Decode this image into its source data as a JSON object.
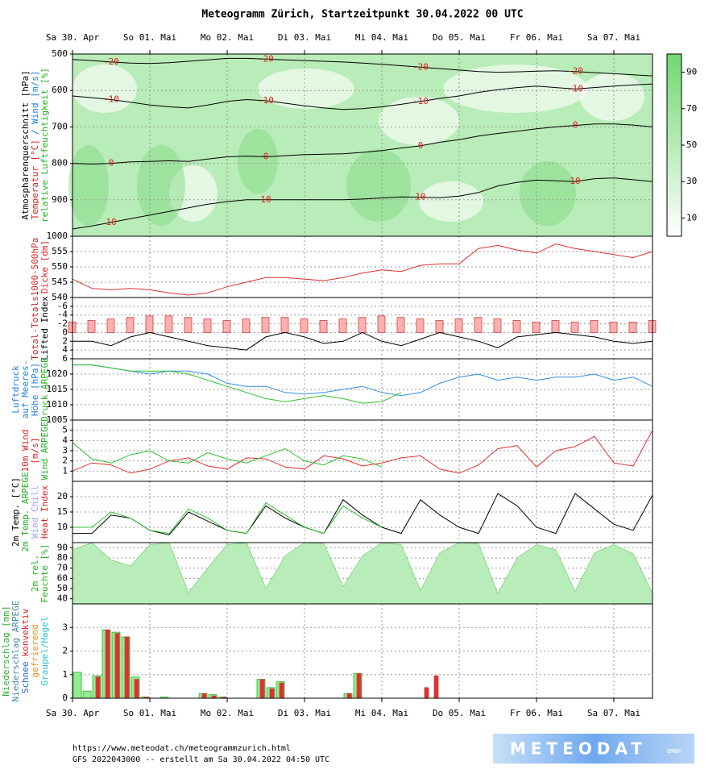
{
  "title": "Meteogramm Zürich, Startzeitpunkt 30.04.2022 00 UTC",
  "time_axis": {
    "xlim": [
      0,
      180
    ],
    "xticks": [
      {
        "value": 0,
        "label": "Sa 30. Apr"
      },
      {
        "value": 24,
        "label": "So 01. Mai"
      },
      {
        "value": 48,
        "label": "Mo 02. Mai"
      },
      {
        "value": 72,
        "label": "Di 03. Mai"
      },
      {
        "value": 96,
        "label": "Mi 04. Mai"
      },
      {
        "value": 120,
        "label": "Do 05. Mai"
      },
      {
        "value": 144,
        "label": "Fr 06. Mai"
      },
      {
        "value": 168,
        "label": "Sa 07. Mai"
      }
    ],
    "x": [
      0,
      6,
      12,
      18,
      24,
      30,
      36,
      42,
      48,
      54,
      60,
      66,
      72,
      78,
      84,
      90,
      96,
      102,
      108,
      114,
      120,
      126,
      132,
      138,
      144,
      150,
      156,
      162,
      168,
      174,
      180
    ]
  },
  "chart_data": [
    {
      "type": "contour",
      "ylim": [
        1000,
        500
      ],
      "yticks": [
        500,
        600,
        700,
        800,
        900,
        1000
      ],
      "grid": true,
      "ylabel": [
        [
          {
            "text": "Atmosphärenquerschnitt [hPa]",
            "color": "#000000"
          }
        ],
        [
          {
            "text": "Temperatur [°C]",
            "color": "#e02020"
          },
          {
            "text": "/ Wind [m/s]",
            "color": "#2080e0"
          }
        ],
        [
          {
            "text": "relative Luftfeuchtigkeit [%]",
            "color": "#20b020"
          }
        ]
      ],
      "colorbar": {
        "lim": [
          0,
          100
        ],
        "ticks": [
          10,
          30,
          50,
          70,
          90
        ]
      },
      "series": [
        {
          "name": "-20",
          "color": "#000000",
          "values": [
            515,
            518,
            522,
            525,
            526,
            524,
            520,
            516,
            512,
            512,
            514,
            516,
            518,
            520,
            522,
            525,
            528,
            532,
            536,
            540,
            544,
            548,
            550,
            549,
            547,
            546,
            548,
            551,
            554,
            557,
            560
          ]
        },
        {
          "name": "-10",
          "color": "#000000",
          "values": [
            615,
            620,
            625,
            632,
            640,
            645,
            648,
            640,
            630,
            625,
            628,
            635,
            642,
            648,
            652,
            650,
            645,
            638,
            630,
            622,
            615,
            605,
            598,
            592,
            588,
            592,
            596,
            592,
            588,
            585,
            582
          ]
        },
        {
          "name": "0",
          "color": "#000000",
          "values": [
            800,
            802,
            800,
            796,
            795,
            793,
            795,
            788,
            782,
            780,
            782,
            779,
            776,
            775,
            774,
            770,
            765,
            758,
            752,
            742,
            735,
            725,
            718,
            712,
            705,
            700,
            696,
            692,
            692,
            695,
            700
          ]
        },
        {
          "name": "10",
          "color": "#000000",
          "values": [
            980,
            972,
            962,
            952,
            942,
            932,
            922,
            912,
            905,
            900,
            900,
            900,
            900,
            900,
            900,
            898,
            895,
            892,
            893,
            894,
            890,
            880,
            862,
            852,
            846,
            848,
            850,
            842,
            840,
            845,
            850
          ]
        }
      ]
    },
    {
      "type": "line",
      "ylim": [
        540,
        560
      ],
      "yticks": [
        540,
        545,
        550,
        555
      ],
      "grid": true,
      "ylabel": [
        [
          {
            "text": "1000-500hPa",
            "color": "#e02020"
          }
        ],
        [
          {
            "text": "Dicke [dm]",
            "color": "#e02020"
          }
        ]
      ],
      "series": [
        {
          "color": "#e03030",
          "values": [
            546,
            543,
            542.5,
            543,
            542.5,
            541.5,
            540.8,
            541.5,
            543.5,
            545,
            546.5,
            546.5,
            546,
            545.5,
            546.5,
            548,
            549,
            548.5,
            550.5,
            551,
            551,
            556,
            557,
            555.5,
            554.5,
            557.5,
            556,
            555,
            554,
            553,
            555
          ]
        }
      ]
    },
    {
      "type": "combo",
      "ylim": [
        6,
        -8
      ],
      "yticks": [
        -6,
        -4,
        -2,
        0,
        2,
        4,
        6
      ],
      "y2lim": [
        20,
        60
      ],
      "grid": true,
      "ylabel": [
        [
          {
            "text": "Total-Totals",
            "color": "#e02020"
          }
        ],
        [
          {
            "text": "Lifted Index",
            "color": "#000000"
          }
        ]
      ],
      "series": [
        {
          "style": "bar",
          "axis": "y2",
          "color": "#ffb0b0",
          "values": [
            44,
            45,
            46,
            47,
            48,
            48,
            47,
            46,
            45,
            46,
            47,
            47,
            46,
            45,
            46,
            47,
            48,
            47,
            46,
            45,
            46,
            47,
            46,
            45,
            44,
            45,
            44,
            45,
            44,
            44,
            45
          ]
        },
        {
          "color": "#000000",
          "values": [
            2,
            2,
            3,
            1,
            0,
            1,
            2,
            3,
            3.5,
            4,
            1,
            0,
            1,
            2.5,
            2,
            0,
            2,
            3,
            1.5,
            0,
            1,
            2,
            3.5,
            1,
            0.5,
            0,
            0.5,
            1,
            2,
            2.5,
            2
          ]
        }
      ]
    },
    {
      "type": "line",
      "ylim": [
        1005,
        1025
      ],
      "yticks": [
        1005,
        1010,
        1015,
        1020
      ],
      "grid": true,
      "ylabel": [
        [
          {
            "text": "Luftdruck",
            "color": "#2080e0"
          }
        ],
        [
          {
            "text": "auf Meeres-",
            "color": "#2080e0"
          }
        ],
        [
          {
            "text": "Höhe [hPa]",
            "color": "#2080e0"
          }
        ],
        [
          {
            "text": "Druck ARPEGE",
            "color": "#20b020"
          }
        ]
      ],
      "series": [
        {
          "color": "#2f8fe0",
          "values": [
            1023,
            1023,
            1022,
            1021,
            1020,
            1021,
            1021,
            1020,
            1017,
            1016,
            1016,
            1014,
            1013.5,
            1014,
            1015,
            1016,
            1014,
            1013,
            1014,
            1017,
            1019,
            1020,
            1018,
            1019,
            1018,
            1019,
            1019,
            1020,
            1018,
            1019,
            1016
          ]
        },
        {
          "color": "#30c030",
          "values": [
            1023,
            1023,
            1022,
            1021,
            1021,
            1021,
            1020,
            1018,
            1016,
            1014,
            1012,
            1011,
            1012,
            1013,
            1012,
            1010.5,
            1011,
            1014,
            null,
            null,
            null,
            null,
            null,
            null,
            null,
            null,
            null,
            null,
            null,
            null,
            null
          ]
        }
      ]
    },
    {
      "type": "line",
      "ylim": [
        0,
        6
      ],
      "yticks": [
        1,
        2,
        3,
        4,
        5
      ],
      "grid": true,
      "ylabel": [
        [
          {
            "text": "10m Wind",
            "color": "#e02020"
          }
        ],
        [
          {
            "text": "[m/s]",
            "color": "#e02020"
          }
        ],
        [
          {
            "text": "Wind ARPEGE",
            "color": "#20b020"
          }
        ]
      ],
      "series": [
        {
          "color": "#e03030",
          "values": [
            1,
            1.8,
            1.6,
            0.8,
            1.2,
            2,
            2.3,
            1.5,
            1.2,
            2.3,
            2.2,
            1.4,
            1.2,
            2.5,
            2.2,
            1.5,
            1.8,
            2.3,
            2.5,
            1.2,
            0.8,
            1.6,
            3.2,
            3.5,
            1.4,
            3,
            3.4,
            4.4,
            1.8,
            1.5,
            5
          ]
        },
        {
          "color": "#30c030",
          "values": [
            3.8,
            2.2,
            1.8,
            2.6,
            3,
            2,
            1.8,
            2.8,
            2.2,
            1.8,
            2.5,
            3.2,
            2,
            1.6,
            2.5,
            2.2,
            1.4,
            null,
            null,
            null,
            null,
            null,
            null,
            null,
            null,
            null,
            null,
            null,
            null,
            null,
            null
          ]
        }
      ]
    },
    {
      "type": "line",
      "ylim": [
        5,
        25
      ],
      "yticks": [
        10,
        15,
        20
      ],
      "grid": true,
      "ylabel": [
        [
          {
            "text": "2m Temp. [°C]",
            "color": "#000000"
          }
        ],
        [
          {
            "text": "2m Temp. ARPEGE",
            "color": "#20b020"
          }
        ],
        [
          {
            "text": "Wind Chill",
            "color": "#a0a0ff"
          }
        ],
        [
          {
            "text": "Heat Index",
            "color": "#e02020"
          }
        ]
      ],
      "series": [
        {
          "color": "#000000",
          "values": [
            8,
            8,
            14,
            13,
            9,
            7.5,
            15,
            12,
            9,
            8,
            17,
            13,
            10,
            8,
            19,
            14,
            10,
            8,
            19,
            14,
            10,
            8,
            21,
            17,
            10,
            8,
            21,
            16,
            11,
            9,
            20.5
          ]
        },
        {
          "color": "#30c030",
          "values": [
            10,
            10,
            15,
            13,
            9,
            8,
            16,
            13,
            9,
            8,
            18,
            14,
            10,
            8,
            17,
            13,
            10,
            null,
            null,
            null,
            null,
            null,
            null,
            null,
            null,
            null,
            null,
            null,
            null,
            null,
            null
          ]
        }
      ]
    },
    {
      "type": "area",
      "ylim": [
        35,
        95
      ],
      "yticks": [
        40,
        50,
        60,
        70,
        80,
        90
      ],
      "grid": true,
      "ylabel": [
        [
          {
            "text": "2m rel.",
            "color": "#20b020"
          }
        ],
        [
          {
            "text": "Feuchte [%]",
            "color": "#20b020"
          }
        ]
      ],
      "series": [
        {
          "style": "area",
          "color": "#b8ecb8",
          "values": [
            88,
            95,
            78,
            72,
            93,
            95,
            46,
            70,
            93,
            95,
            50,
            82,
            95,
            94,
            52,
            82,
            95,
            93,
            48,
            85,
            95,
            94,
            45,
            80,
            93,
            88,
            47,
            85,
            93,
            84,
            45
          ]
        }
      ]
    },
    {
      "type": "bar",
      "ylim": [
        0,
        4
      ],
      "yticks": [
        0,
        1,
        2,
        3
      ],
      "grid": true,
      "ylabel": [
        [
          {
            "text": "Niederschlag [mm]",
            "color": "#30b030"
          }
        ],
        [
          {
            "text": "Niederschlag ARPEGE",
            "color": "#4a8aa8"
          }
        ],
        [
          {
            "text": "Schnee",
            "color": "#2060e0"
          },
          {
            "text": "konvektiv",
            "color": "#e02020"
          }
        ],
        [
          {
            "text": "gefrierend",
            "color": "#f09020"
          }
        ],
        [
          {
            "text": "Graupel/Hagel",
            "color": "#20c0d0"
          }
        ]
      ],
      "x": [
        1.5,
        4.5,
        7.5,
        10.5,
        13.5,
        16.5,
        19.5,
        22.5,
        28.5,
        40.5,
        43.5,
        46.5,
        58.5,
        61.5,
        64.5,
        85.5,
        88.5,
        109.5,
        112.5
      ],
      "series": [
        {
          "style": "bar",
          "color": "#90ee90",
          "values": [
            1.1,
            0.3,
            0.95,
            2.9,
            2.8,
            2.6,
            0.9,
            0.05,
            0.05,
            0.2,
            0.15,
            0.05,
            0.8,
            0.45,
            0.7,
            0.2,
            1.05,
            null,
            null
          ]
        },
        {
          "style": "bar",
          "color": "#e03030",
          "values": [
            0,
            0,
            0.9,
            2.9,
            2.75,
            2.6,
            0.8,
            0.05,
            0,
            0.2,
            0.1,
            0.05,
            0.8,
            0.4,
            0.65,
            0.2,
            1.05,
            0.45,
            0.95
          ]
        }
      ]
    }
  ],
  "footer": {
    "url": "https://www.meteodat.ch/meteogrammzurich.html",
    "run": "GFS 2022043000 -- erstellt am Sa 30.04.2022 04:50 UTC"
  },
  "logo": {
    "name": "METEODAT",
    "suffix": "GMBH"
  }
}
